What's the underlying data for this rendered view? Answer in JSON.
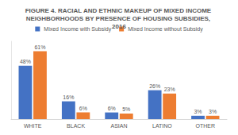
{
  "chart_data": {
    "type": "bar",
    "title": "FIGURE 4. RACIAL AND ETHNIC MAKEUP OF MIXED INCOME NEIGHBORHOODS BY PRESENCE OF HOUSING SUBSIDIES, 2016",
    "categories": [
      "WHITE",
      "BLACK",
      "ASIAN",
      "LATINO",
      "OTHER"
    ],
    "series": [
      {
        "name": "Mixed Income with Subsidy",
        "color": "#4472c4",
        "values": [
          48,
          16,
          6,
          26,
          3
        ],
        "value_labels": [
          "48%",
          "16%",
          "6%",
          "26%",
          "3%"
        ]
      },
      {
        "name": "Mixed Income without Subsidy",
        "color": "#ed7d31",
        "values": [
          61,
          6,
          5,
          23,
          3
        ],
        "value_labels": [
          "61%",
          "6%",
          "5%",
          "23%",
          "3%"
        ]
      }
    ],
    "ylim": [
      0,
      70
    ],
    "grid": false,
    "legend": "top",
    "data_labels": true,
    "tick_labels": "x"
  }
}
